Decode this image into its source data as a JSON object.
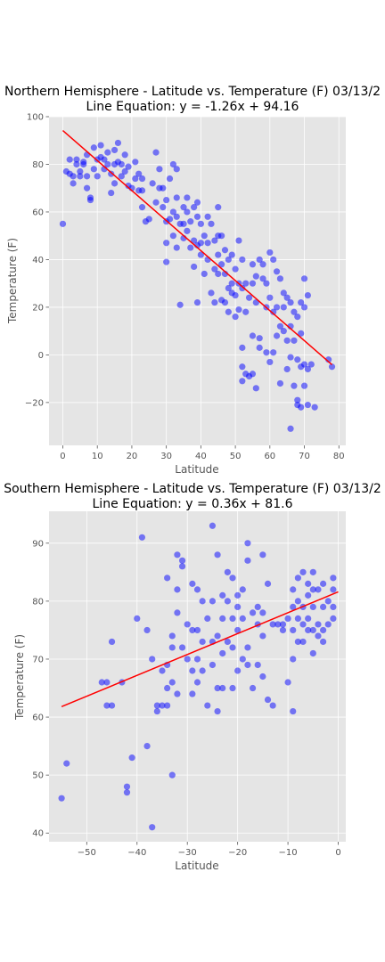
{
  "chart_data": [
    {
      "type": "scatter",
      "title": "Northern Hemisphere - Latitude vs. Temperature (F) 03/13/2",
      "subtitle": "Line Equation: y = -1.26x + 94.16",
      "xlabel": "Latitude",
      "ylabel": "Temperature (F)",
      "xlim": [
        -4,
        82
      ],
      "ylim": [
        -38,
        100
      ],
      "xticks": [
        0,
        10,
        20,
        30,
        40,
        50,
        60,
        70,
        80
      ],
      "yticks": [
        -20,
        0,
        20,
        40,
        60,
        80,
        100
      ],
      "grid": true,
      "point_color": "#0000ff",
      "line_color": "#ff0000",
      "regression": {
        "slope": -1.26,
        "intercept": 94.16,
        "x_range": [
          0,
          78
        ]
      },
      "points": [
        [
          0,
          55
        ],
        [
          1,
          77
        ],
        [
          2,
          82
        ],
        [
          2,
          76
        ],
        [
          3,
          72
        ],
        [
          3,
          75
        ],
        [
          4,
          82
        ],
        [
          4,
          80
        ],
        [
          5,
          77
        ],
        [
          5,
          75
        ],
        [
          6,
          80
        ],
        [
          6,
          81
        ],
        [
          7,
          75
        ],
        [
          7,
          70
        ],
        [
          7,
          84
        ],
        [
          8,
          66
        ],
        [
          8,
          65
        ],
        [
          9,
          87
        ],
        [
          9,
          78
        ],
        [
          10,
          82
        ],
        [
          10,
          75
        ],
        [
          11,
          88
        ],
        [
          11,
          83
        ],
        [
          12,
          82
        ],
        [
          12,
          78
        ],
        [
          13,
          85
        ],
        [
          13,
          80
        ],
        [
          14,
          76
        ],
        [
          14,
          68
        ],
        [
          15,
          86
        ],
        [
          15,
          80
        ],
        [
          15,
          72
        ],
        [
          16,
          89
        ],
        [
          16,
          81
        ],
        [
          17,
          80
        ],
        [
          17,
          75
        ],
        [
          18,
          84
        ],
        [
          18,
          77
        ],
        [
          19,
          79
        ],
        [
          19,
          71
        ],
        [
          20,
          70
        ],
        [
          21,
          81
        ],
        [
          21,
          74
        ],
        [
          22,
          76
        ],
        [
          22,
          69
        ],
        [
          23,
          74
        ],
        [
          23,
          69
        ],
        [
          23,
          62
        ],
        [
          24,
          56
        ],
        [
          25,
          57
        ],
        [
          26,
          72
        ],
        [
          27,
          85
        ],
        [
          27,
          64
        ],
        [
          28,
          78
        ],
        [
          28,
          70
        ],
        [
          29,
          70
        ],
        [
          29,
          62
        ],
        [
          30,
          65
        ],
        [
          30,
          56
        ],
        [
          30,
          47
        ],
        [
          30,
          39
        ],
        [
          31,
          74
        ],
        [
          31,
          57
        ],
        [
          32,
          80
        ],
        [
          32,
          60
        ],
        [
          32,
          50
        ],
        [
          33,
          78
        ],
        [
          33,
          66
        ],
        [
          33,
          58
        ],
        [
          33,
          45
        ],
        [
          34,
          55
        ],
        [
          34,
          21
        ],
        [
          35,
          62
        ],
        [
          35,
          55
        ],
        [
          35,
          49
        ],
        [
          36,
          66
        ],
        [
          36,
          60
        ],
        [
          36,
          52
        ],
        [
          37,
          56
        ],
        [
          37,
          45
        ],
        [
          38,
          62
        ],
        [
          38,
          48
        ],
        [
          38,
          37
        ],
        [
          39,
          64
        ],
        [
          39,
          58
        ],
        [
          39,
          46
        ],
        [
          39,
          22
        ],
        [
          40,
          55
        ],
        [
          40,
          47
        ],
        [
          40,
          42
        ],
        [
          41,
          50
        ],
        [
          41,
          34
        ],
        [
          42,
          58
        ],
        [
          42,
          47
        ],
        [
          42,
          40
        ],
        [
          43,
          55
        ],
        [
          43,
          26
        ],
        [
          44,
          48
        ],
        [
          44,
          36
        ],
        [
          44,
          22
        ],
        [
          45,
          62
        ],
        [
          45,
          50
        ],
        [
          45,
          42
        ],
        [
          45,
          34
        ],
        [
          46,
          50
        ],
        [
          46,
          38
        ],
        [
          46,
          23
        ],
        [
          47,
          44
        ],
        [
          47,
          34
        ],
        [
          47,
          22
        ],
        [
          48,
          40
        ],
        [
          48,
          28
        ],
        [
          48,
          18
        ],
        [
          49,
          42
        ],
        [
          49,
          30
        ],
        [
          49,
          26
        ],
        [
          50,
          36
        ],
        [
          50,
          25
        ],
        [
          50,
          16
        ],
        [
          51,
          48
        ],
        [
          51,
          30
        ],
        [
          51,
          19
        ],
        [
          52,
          40
        ],
        [
          52,
          28
        ],
        [
          52,
          3
        ],
        [
          52,
          -5
        ],
        [
          52,
          -11
        ],
        [
          53,
          30
        ],
        [
          53,
          18
        ],
        [
          53,
          -8
        ],
        [
          54,
          24
        ],
        [
          54,
          -9
        ],
        [
          55,
          38
        ],
        [
          55,
          30
        ],
        [
          55,
          8
        ],
        [
          55,
          -8
        ],
        [
          56,
          33
        ],
        [
          56,
          22
        ],
        [
          56,
          -14
        ],
        [
          57,
          40
        ],
        [
          57,
          7
        ],
        [
          57,
          3
        ],
        [
          58,
          38
        ],
        [
          58,
          32
        ],
        [
          59,
          30
        ],
        [
          59,
          20
        ],
        [
          59,
          1
        ],
        [
          60,
          43
        ],
        [
          60,
          24
        ],
        [
          60,
          -3
        ],
        [
          61,
          40
        ],
        [
          61,
          18
        ],
        [
          61,
          1
        ],
        [
          62,
          35
        ],
        [
          62,
          20
        ],
        [
          62,
          8
        ],
        [
          63,
          32
        ],
        [
          63,
          12
        ],
        [
          63,
          -12
        ],
        [
          64,
          26
        ],
        [
          64,
          20
        ],
        [
          64,
          10
        ],
        [
          65,
          24
        ],
        [
          65,
          6
        ],
        [
          65,
          -6
        ],
        [
          66,
          22
        ],
        [
          66,
          12
        ],
        [
          66,
          -1
        ],
        [
          66,
          -31
        ],
        [
          67,
          18
        ],
        [
          67,
          6
        ],
        [
          67,
          -13
        ],
        [
          68,
          16
        ],
        [
          68,
          -2
        ],
        [
          68,
          -19
        ],
        [
          68,
          -21
        ],
        [
          69,
          22
        ],
        [
          69,
          9
        ],
        [
          69,
          -5
        ],
        [
          69,
          -22
        ],
        [
          70,
          32
        ],
        [
          70,
          20
        ],
        [
          70,
          -4
        ],
        [
          70,
          -13
        ],
        [
          71,
          25
        ],
        [
          71,
          -6
        ],
        [
          71,
          -21
        ],
        [
          72,
          -4
        ],
        [
          73,
          -22
        ],
        [
          77,
          -2
        ],
        [
          78,
          -5
        ]
      ]
    },
    {
      "type": "scatter",
      "title": "Southern Hemisphere - Latitude vs. Temperature (F) 03/13/2",
      "subtitle": "Line Equation: y = 0.36x + 81.6",
      "xlabel": "Latitude",
      "ylabel": "Temperature (F)",
      "xlim": [
        -57.5,
        1.5
      ],
      "ylim": [
        38.5,
        95.5
      ],
      "xticks": [
        -50,
        -40,
        -30,
        -20,
        -10,
        0
      ],
      "yticks": [
        40,
        50,
        60,
        70,
        80,
        90
      ],
      "grid": true,
      "point_color": "#0000ff",
      "line_color": "#ff0000",
      "regression": {
        "slope": 0.36,
        "intercept": 81.6,
        "x_range": [
          -55,
          0
        ]
      },
      "points": [
        [
          -55,
          46
        ],
        [
          -54,
          52
        ],
        [
          -47,
          66
        ],
        [
          -46,
          62
        ],
        [
          -46,
          66
        ],
        [
          -45,
          73
        ],
        [
          -45,
          62
        ],
        [
          -43,
          66
        ],
        [
          -42,
          48
        ],
        [
          -42,
          47
        ],
        [
          -41,
          53
        ],
        [
          -40,
          77
        ],
        [
          -39,
          91
        ],
        [
          -38,
          75
        ],
        [
          -38,
          55
        ],
        [
          -37,
          70
        ],
        [
          -37,
          41
        ],
        [
          -36,
          62
        ],
        [
          -36,
          61
        ],
        [
          -35,
          62
        ],
        [
          -35,
          68
        ],
        [
          -34,
          84
        ],
        [
          -34,
          69
        ],
        [
          -34,
          65
        ],
        [
          -34,
          62
        ],
        [
          -33,
          74
        ],
        [
          -33,
          72
        ],
        [
          -33,
          66
        ],
        [
          -33,
          50
        ],
        [
          -32,
          82
        ],
        [
          -32,
          88
        ],
        [
          -32,
          78
        ],
        [
          -32,
          64
        ],
        [
          -31,
          87
        ],
        [
          -31,
          86
        ],
        [
          -31,
          72
        ],
        [
          -30,
          76
        ],
        [
          -30,
          70
        ],
        [
          -29,
          83
        ],
        [
          -29,
          75
        ],
        [
          -29,
          68
        ],
        [
          -29,
          64
        ],
        [
          -28,
          82
        ],
        [
          -28,
          75
        ],
        [
          -28,
          70
        ],
        [
          -28,
          66
        ],
        [
          -27,
          80
        ],
        [
          -27,
          73
        ],
        [
          -27,
          68
        ],
        [
          -26,
          77
        ],
        [
          -26,
          62
        ],
        [
          -25,
          93
        ],
        [
          -25,
          80
        ],
        [
          -25,
          73
        ],
        [
          -25,
          69
        ],
        [
          -24,
          88
        ],
        [
          -24,
          74
        ],
        [
          -24,
          65
        ],
        [
          -24,
          61
        ],
        [
          -23,
          81
        ],
        [
          -23,
          77
        ],
        [
          -23,
          71
        ],
        [
          -23,
          65
        ],
        [
          -22,
          85
        ],
        [
          -22,
          80
        ],
        [
          -22,
          73
        ],
        [
          -21,
          84
        ],
        [
          -21,
          77
        ],
        [
          -21,
          72
        ],
        [
          -21,
          65
        ],
        [
          -20,
          81
        ],
        [
          -20,
          79
        ],
        [
          -20,
          75
        ],
        [
          -20,
          68
        ],
        [
          -19,
          82
        ],
        [
          -19,
          77
        ],
        [
          -19,
          70
        ],
        [
          -18,
          90
        ],
        [
          -18,
          87
        ],
        [
          -18,
          72
        ],
        [
          -18,
          69
        ],
        [
          -17,
          78
        ],
        [
          -17,
          65
        ],
        [
          -16,
          79
        ],
        [
          -16,
          76
        ],
        [
          -16,
          69
        ],
        [
          -15,
          88
        ],
        [
          -15,
          78
        ],
        [
          -15,
          74
        ],
        [
          -15,
          67
        ],
        [
          -14,
          83
        ],
        [
          -14,
          63
        ],
        [
          -13,
          76
        ],
        [
          -13,
          62
        ],
        [
          -12,
          76
        ],
        [
          -11,
          75
        ],
        [
          -11,
          76
        ],
        [
          -10,
          77
        ],
        [
          -10,
          66
        ],
        [
          -9,
          82
        ],
        [
          -9,
          79
        ],
        [
          -9,
          75
        ],
        [
          -9,
          70
        ],
        [
          -9,
          61
        ],
        [
          -8,
          84
        ],
        [
          -8,
          80
        ],
        [
          -8,
          77
        ],
        [
          -8,
          73
        ],
        [
          -7,
          85
        ],
        [
          -7,
          79
        ],
        [
          -7,
          76
        ],
        [
          -7,
          73
        ],
        [
          -6,
          83
        ],
        [
          -6,
          81
        ],
        [
          -6,
          77
        ],
        [
          -6,
          75
        ],
        [
          -5,
          85
        ],
        [
          -5,
          82
        ],
        [
          -5,
          79
        ],
        [
          -5,
          75
        ],
        [
          -5,
          71
        ],
        [
          -4,
          82
        ],
        [
          -4,
          76
        ],
        [
          -4,
          74
        ],
        [
          -3,
          83
        ],
        [
          -3,
          79
        ],
        [
          -3,
          75
        ],
        [
          -3,
          73
        ],
        [
          -2,
          80
        ],
        [
          -2,
          76
        ],
        [
          -1,
          84
        ],
        [
          -1,
          82
        ],
        [
          -1,
          79
        ],
        [
          -1,
          77
        ]
      ]
    }
  ]
}
